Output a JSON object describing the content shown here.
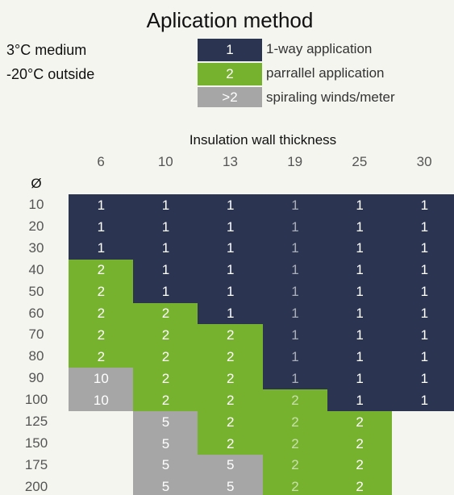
{
  "title": "Aplication method",
  "notes": [
    "3°C medium",
    "-20°C outside"
  ],
  "legend": [
    {
      "key": "1",
      "label": "1-way application",
      "color": "#2b3551"
    },
    {
      "key": "2",
      "label": "parrallel application",
      "color": "#77b22f"
    },
    {
      "key": ">2",
      "label": "spiraling winds/meter",
      "color": "#a6a6a6"
    }
  ],
  "table": {
    "caption": "Insulation wall thickness",
    "row_header": "Ø",
    "columns": [
      6,
      10,
      13,
      19,
      25,
      30
    ],
    "rows": [
      {
        "label": 10,
        "cells": [
          1,
          1,
          1,
          1,
          1,
          1
        ]
      },
      {
        "label": 20,
        "cells": [
          1,
          1,
          1,
          1,
          1,
          1
        ]
      },
      {
        "label": 30,
        "cells": [
          1,
          1,
          1,
          1,
          1,
          1
        ]
      },
      {
        "label": 40,
        "cells": [
          2,
          1,
          1,
          1,
          1,
          1
        ]
      },
      {
        "label": 50,
        "cells": [
          2,
          1,
          1,
          1,
          1,
          1
        ]
      },
      {
        "label": 60,
        "cells": [
          2,
          2,
          1,
          1,
          1,
          1
        ]
      },
      {
        "label": 70,
        "cells": [
          2,
          2,
          2,
          1,
          1,
          1
        ]
      },
      {
        "label": 80,
        "cells": [
          2,
          2,
          2,
          1,
          1,
          1
        ]
      },
      {
        "label": 90,
        "cells": [
          10,
          2,
          2,
          1,
          1,
          1
        ]
      },
      {
        "label": 100,
        "cells": [
          10,
          2,
          2,
          2,
          1,
          1
        ]
      },
      {
        "label": 125,
        "cells": [
          null,
          5,
          2,
          2,
          2,
          null
        ]
      },
      {
        "label": 150,
        "cells": [
          null,
          5,
          2,
          2,
          2,
          null
        ]
      },
      {
        "label": 175,
        "cells": [
          null,
          5,
          5,
          2,
          2,
          null
        ]
      },
      {
        "label": 200,
        "cells": [
          null,
          5,
          5,
          2,
          2,
          null
        ]
      }
    ]
  }
}
